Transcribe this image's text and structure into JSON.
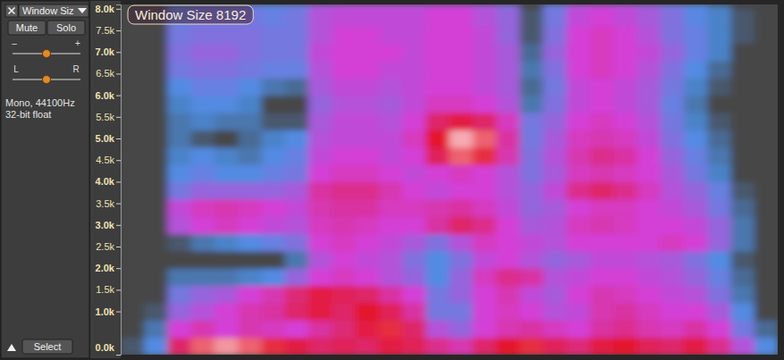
{
  "track_panel": {
    "name": "Window Siz",
    "buttons": [
      "Mute",
      "Solo"
    ],
    "gain_labels": [
      "–",
      "+"
    ],
    "pan_labels": [
      "L",
      "R"
    ],
    "info": [
      "Mono, 44100Hz",
      "32-bit float"
    ],
    "select": "Select"
  },
  "chart_data": {
    "type": "heatmap",
    "title": "Window Size 8192",
    "ylim": [
      0,
      8100
    ],
    "yticks": [
      {
        "value": 0,
        "label": "0.0k"
      },
      {
        "value": 1000,
        "label": "1.0k"
      },
      {
        "value": 1500,
        "label": "1.5k"
      },
      {
        "value": 2000,
        "label": "2.0k"
      },
      {
        "value": 2500,
        "label": "2.5k"
      },
      {
        "value": 3000,
        "label": "3.0k"
      },
      {
        "value": 3500,
        "label": "3.5k"
      },
      {
        "value": 4000,
        "label": "4.0k"
      },
      {
        "value": 4500,
        "label": "4.5k"
      },
      {
        "value": 5000,
        "label": "5.0k"
      },
      {
        "value": 5500,
        "label": "5.5k"
      },
      {
        "value": 6000,
        "label": "6.0k"
      },
      {
        "value": 6500,
        "label": "6.5k"
      },
      {
        "value": 7000,
        "label": "7.0k"
      },
      {
        "value": 7500,
        "label": "7.5k"
      },
      {
        "value": 8000,
        "label": "8.0k"
      }
    ],
    "tick_labels": "y",
    "zlim": [
      0,
      100
    ],
    "y_bins": [
      0,
      400,
      800,
      1200,
      1600,
      2000,
      2400,
      2800,
      3200,
      3600,
      4000,
      4400,
      4800,
      5200,
      5600,
      6000,
      6400,
      6800,
      7200,
      7600,
      8000,
      8100
    ],
    "cells": [
      [
        25,
        35,
        70,
        85,
        90,
        85,
        80,
        75,
        70,
        72,
        70,
        75,
        72,
        65,
        60,
        70,
        78,
        80,
        72,
        68,
        75,
        78,
        72,
        70,
        75,
        65,
        50,
        35
      ],
      [
        20,
        30,
        55,
        60,
        55,
        60,
        58,
        55,
        62,
        68,
        75,
        80,
        70,
        50,
        45,
        55,
        60,
        62,
        58,
        55,
        62,
        65,
        60,
        58,
        62,
        55,
        40,
        28
      ],
      [
        15,
        25,
        45,
        50,
        55,
        60,
        62,
        70,
        75,
        70,
        78,
        72,
        62,
        40,
        40,
        55,
        58,
        55,
        50,
        52,
        60,
        62,
        58,
        55,
        55,
        48,
        35,
        22
      ],
      [
        10,
        20,
        40,
        45,
        48,
        55,
        60,
        68,
        75,
        72,
        70,
        62,
        55,
        40,
        45,
        55,
        60,
        52,
        48,
        55,
        60,
        58,
        55,
        52,
        50,
        42,
        30,
        20
      ],
      [
        5,
        15,
        30,
        30,
        30,
        32,
        35,
        45,
        55,
        58,
        55,
        50,
        45,
        35,
        45,
        58,
        65,
        62,
        50,
        52,
        55,
        55,
        52,
        50,
        45,
        38,
        28,
        18
      ],
      [
        5,
        12,
        20,
        15,
        15,
        15,
        18,
        30,
        50,
        55,
        52,
        50,
        42,
        35,
        42,
        52,
        55,
        50,
        45,
        48,
        52,
        52,
        50,
        48,
        42,
        35,
        25,
        15
      ],
      [
        5,
        12,
        25,
        30,
        32,
        35,
        38,
        42,
        55,
        58,
        55,
        52,
        48,
        42,
        50,
        58,
        55,
        52,
        50,
        55,
        55,
        55,
        55,
        58,
        55,
        45,
        30,
        18
      ],
      [
        5,
        15,
        50,
        55,
        58,
        55,
        52,
        50,
        58,
        60,
        58,
        55,
        55,
        62,
        70,
        65,
        55,
        48,
        50,
        58,
        60,
        58,
        55,
        55,
        52,
        45,
        30,
        18
      ],
      [
        5,
        15,
        52,
        58,
        60,
        58,
        55,
        52,
        60,
        62,
        62,
        58,
        58,
        60,
        62,
        58,
        52,
        45,
        48,
        55,
        58,
        58,
        55,
        52,
        48,
        40,
        28,
        15
      ],
      [
        5,
        12,
        40,
        45,
        45,
        45,
        45,
        48,
        62,
        65,
        65,
        60,
        55,
        52,
        55,
        55,
        50,
        45,
        52,
        65,
        70,
        65,
        58,
        50,
        45,
        38,
        25,
        12
      ],
      [
        5,
        10,
        35,
        38,
        35,
        35,
        38,
        40,
        55,
        58,
        58,
        55,
        52,
        55,
        58,
        55,
        50,
        42,
        48,
        58,
        60,
        58,
        55,
        48,
        40,
        32,
        22,
        10
      ],
      [
        5,
        10,
        32,
        35,
        32,
        30,
        35,
        38,
        52,
        55,
        55,
        52,
        55,
        72,
        85,
        80,
        60,
        42,
        50,
        60,
        65,
        62,
        55,
        45,
        38,
        30,
        20,
        10
      ],
      [
        5,
        10,
        30,
        25,
        20,
        28,
        32,
        35,
        50,
        52,
        52,
        52,
        58,
        78,
        92,
        85,
        62,
        40,
        48,
        58,
        60,
        58,
        52,
        42,
        35,
        28,
        18,
        8
      ],
      [
        5,
        10,
        30,
        32,
        30,
        30,
        25,
        25,
        48,
        52,
        52,
        50,
        55,
        70,
        75,
        70,
        58,
        40,
        45,
        55,
        58,
        55,
        50,
        40,
        32,
        25,
        15,
        8
      ],
      [
        5,
        10,
        32,
        35,
        35,
        32,
        20,
        18,
        45,
        50,
        50,
        48,
        52,
        58,
        58,
        55,
        50,
        30,
        42,
        52,
        55,
        52,
        48,
        38,
        30,
        22,
        15,
        8
      ],
      [
        5,
        12,
        35,
        38,
        38,
        35,
        30,
        28,
        48,
        52,
        52,
        50,
        52,
        55,
        55,
        52,
        48,
        28,
        40,
        52,
        55,
        52,
        48,
        40,
        32,
        25,
        18,
        10
      ],
      [
        5,
        15,
        40,
        42,
        42,
        40,
        38,
        38,
        50,
        55,
        55,
        52,
        52,
        55,
        55,
        52,
        48,
        30,
        42,
        55,
        58,
        55,
        50,
        42,
        35,
        28,
        20,
        12
      ],
      [
        5,
        18,
        42,
        45,
        45,
        42,
        40,
        40,
        52,
        55,
        55,
        55,
        52,
        55,
        55,
        52,
        48,
        28,
        45,
        55,
        58,
        55,
        52,
        45,
        38,
        32,
        22,
        15
      ],
      [
        5,
        18,
        40,
        42,
        42,
        42,
        40,
        40,
        50,
        55,
        55,
        52,
        52,
        55,
        55,
        52,
        45,
        25,
        42,
        55,
        58,
        55,
        50,
        42,
        38,
        32,
        25,
        15
      ],
      [
        5,
        15,
        38,
        40,
        40,
        40,
        38,
        40,
        50,
        52,
        52,
        52,
        52,
        55,
        55,
        50,
        45,
        25,
        40,
        52,
        55,
        52,
        48,
        42,
        36,
        32,
        25,
        15
      ],
      [
        5,
        12,
        35,
        38,
        38,
        38,
        36,
        38,
        48,
        50,
        50,
        50,
        50,
        52,
        52,
        48,
        42,
        22,
        38,
        50,
        52,
        50,
        46,
        40,
        35,
        30,
        22,
        12
      ]
    ]
  }
}
